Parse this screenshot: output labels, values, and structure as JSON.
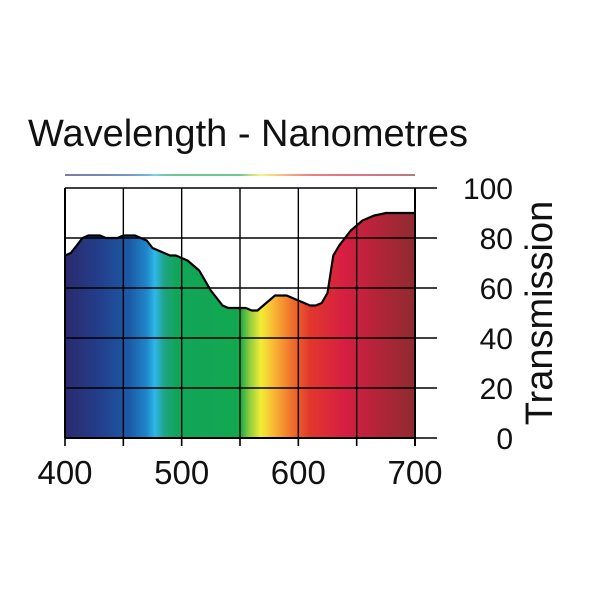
{
  "chart_data": {
    "type": "area",
    "title": "Wavelength - Nanometres",
    "xlabel": "Wavelength - Nanometres",
    "ylabel": "Transmission",
    "xlim": [
      400,
      700
    ],
    "ylim": [
      0,
      100
    ],
    "x_ticks": [
      400,
      500,
      600,
      700
    ],
    "x_tick_labels": [
      "400",
      "500",
      "600",
      "700"
    ],
    "x_gridlines": [
      400,
      450,
      500,
      550,
      600,
      650,
      700
    ],
    "y_ticks": [
      0,
      20,
      40,
      60,
      80,
      100
    ],
    "y_tick_labels": [
      "0",
      "20",
      "40",
      "60",
      "80",
      "100"
    ],
    "y_gridlines": [
      0,
      20,
      40,
      60,
      80,
      100
    ],
    "grid": true,
    "y_axis_side": "right",
    "series": [
      {
        "name": "Transmission",
        "x": [
          400,
          405,
          410,
          415,
          420,
          425,
          430,
          435,
          440,
          445,
          450,
          455,
          460,
          465,
          470,
          475,
          480,
          485,
          490,
          495,
          500,
          505,
          510,
          515,
          520,
          525,
          530,
          535,
          540,
          545,
          550,
          555,
          560,
          565,
          570,
          575,
          580,
          585,
          590,
          595,
          600,
          605,
          610,
          615,
          620,
          625,
          630,
          635,
          640,
          645,
          650,
          655,
          660,
          665,
          670,
          675,
          680,
          685,
          690,
          695,
          700
        ],
        "values": [
          73,
          74,
          77,
          80,
          81,
          81,
          81,
          80,
          80,
          80,
          81,
          81,
          81,
          80,
          79,
          76,
          75,
          74,
          73,
          73,
          72,
          71,
          69,
          67,
          63,
          59,
          56,
          53,
          52,
          52,
          52,
          52,
          51,
          51,
          53,
          55,
          57,
          57,
          57,
          56,
          55,
          54,
          53,
          53,
          54,
          58,
          73,
          77,
          80,
          83,
          85,
          87,
          88,
          89,
          89.5,
          90,
          90,
          90,
          90,
          90,
          90
        ]
      }
    ],
    "spectrum_stops": [
      {
        "x": 400,
        "color": "#2b2a6e"
      },
      {
        "x": 430,
        "color": "#233f8b"
      },
      {
        "x": 455,
        "color": "#1b5aa6"
      },
      {
        "x": 470,
        "color": "#1f86c9"
      },
      {
        "x": 477,
        "color": "#2fb6ea"
      },
      {
        "x": 485,
        "color": "#1fa487"
      },
      {
        "x": 495,
        "color": "#11a55a"
      },
      {
        "x": 550,
        "color": "#12a84f"
      },
      {
        "x": 558,
        "color": "#8ccd3c"
      },
      {
        "x": 568,
        "color": "#f2ed36"
      },
      {
        "x": 580,
        "color": "#f9b233"
      },
      {
        "x": 595,
        "color": "#ef6d2d"
      },
      {
        "x": 610,
        "color": "#e2372c"
      },
      {
        "x": 640,
        "color": "#d51e42"
      },
      {
        "x": 700,
        "color": "#8e2b2f"
      }
    ],
    "legend": "none"
  }
}
